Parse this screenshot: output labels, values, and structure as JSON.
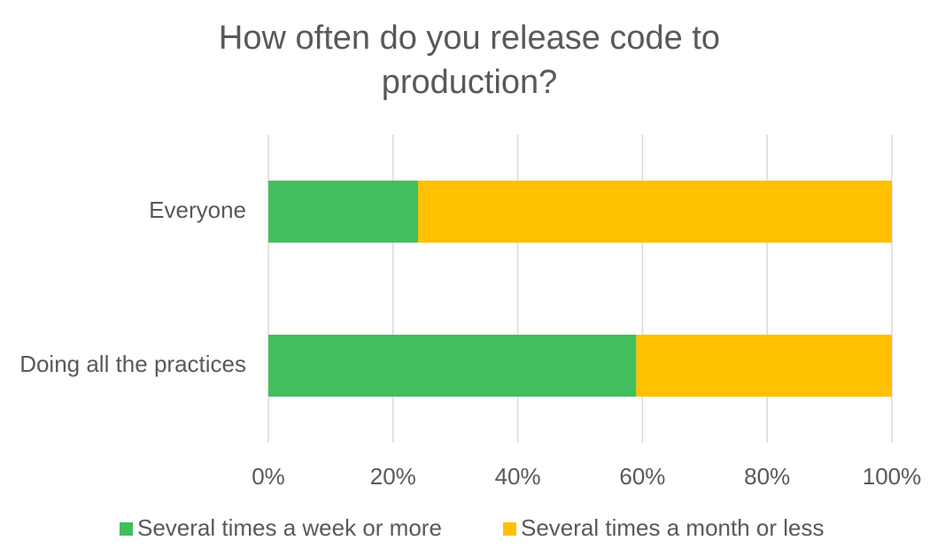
{
  "chart_data": {
    "type": "stacked_barh",
    "title": "How often do you release code to production?",
    "categories": [
      "Everyone",
      "Doing all the practices"
    ],
    "series": [
      {
        "name": "Several times a week or more",
        "color": "#41bf5e",
        "values": [
          24,
          59
        ]
      },
      {
        "name": "Several times a month or less",
        "color": "#ffc000",
        "values": [
          76,
          41
        ]
      }
    ],
    "xlim": [
      0,
      100
    ],
    "xticks": [
      {
        "value": 0,
        "label": "0%"
      },
      {
        "value": 20,
        "label": "20%"
      },
      {
        "value": 40,
        "label": "40%"
      },
      {
        "value": 60,
        "label": "60%"
      },
      {
        "value": 80,
        "label": "80%"
      },
      {
        "value": 100,
        "label": "100%"
      }
    ],
    "grid": true
  }
}
